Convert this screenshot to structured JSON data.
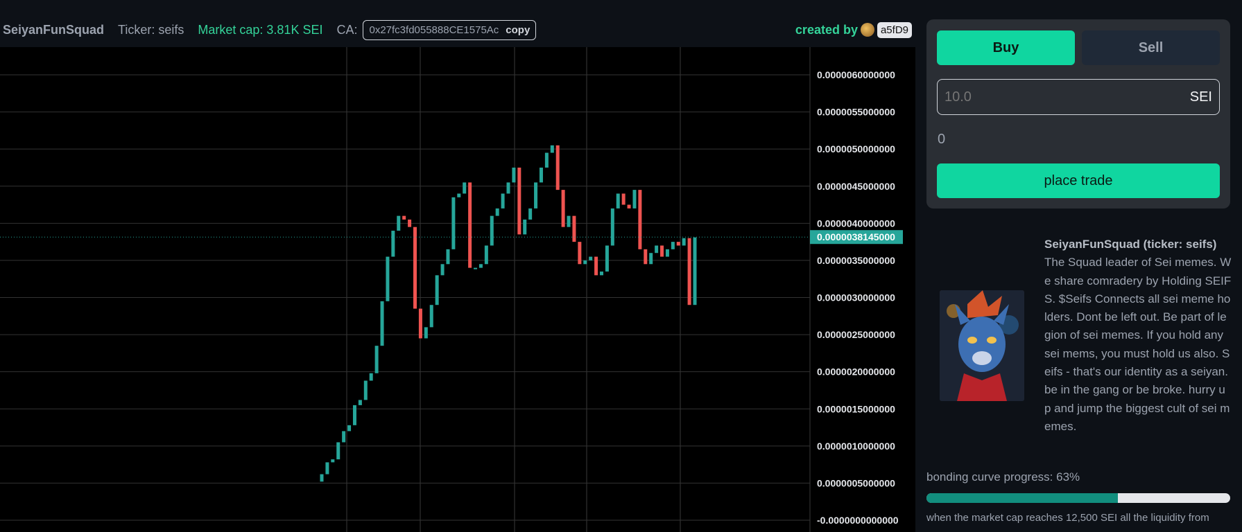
{
  "header": {
    "name": "SeiyanFunSquad",
    "ticker": "Ticker: seifs",
    "market_cap": "Market cap: 3.81K SEI",
    "ca_label": "CA:",
    "ca_value": "0x27fc3fd055888CE1575Ac",
    "copy_label": "copy",
    "created_by": "created by",
    "creator": "a5fD9"
  },
  "trade": {
    "buy_label": "Buy",
    "sell_label": "Sell",
    "amount_placeholder": "10.0",
    "amount_unit": "SEI",
    "receive_value": "0",
    "place_label": "place trade"
  },
  "info": {
    "title": "SeiyanFunSquad (ticker: seifs)",
    "description": "The Squad leader of Sei memes. We share comradery by Holding SEIFS. $Seifs Connects all sei meme holders. Dont be left out. Be part of legion of sei memes. If you hold any sei mems, you must hold us also. Seifs - that's our identity as a seiyan. be in the gang or be broke. hurry up and jump the biggest cult of sei memes."
  },
  "progress": {
    "label": "bonding curve progress: 63%",
    "value": 0.63,
    "note": "when the market cap reaches 12,500 SEI all the liquidity from"
  },
  "colors": {
    "up": "#26a69a",
    "down": "#ef5350",
    "accent": "#10d6a0"
  },
  "chart_data": {
    "type": "candlestick",
    "last_price_label": "0.0000038145000",
    "last_price": 3.8145e-06,
    "ylim": [
      0,
      6.5e-06
    ],
    "y_ticks": [
      "0.0000060000000",
      "0.0000055000000",
      "0.0000050000000",
      "0.0000045000000",
      "0.0000040000000",
      "0.0000035000000",
      "0.0000030000000",
      "0.0000025000000",
      "0.0000020000000",
      "0.0000015000000",
      "0.0000010000000",
      "0.0000005000000",
      "-0.0000000000000"
    ],
    "y_tick_values": [
      6e-06,
      5.5e-06,
      5e-06,
      4.5e-06,
      4e-06,
      3.5e-06,
      3e-06,
      2.5e-06,
      2e-06,
      1.5e-06,
      1e-06,
      5e-07,
      0
    ],
    "candles": [
      [
        0.52,
        0.62
      ],
      [
        0.62,
        0.78
      ],
      [
        0.78,
        0.82
      ],
      [
        0.82,
        1.05
      ],
      [
        1.05,
        1.2
      ],
      [
        1.2,
        1.28
      ],
      [
        1.28,
        1.55
      ],
      [
        1.55,
        1.62
      ],
      [
        1.62,
        1.88
      ],
      [
        1.88,
        1.98
      ],
      [
        1.98,
        2.35
      ],
      [
        2.35,
        2.95
      ],
      [
        2.95,
        3.55
      ],
      [
        3.55,
        3.9
      ],
      [
        3.9,
        4.1
      ],
      [
        4.1,
        4.05
      ],
      [
        4.05,
        3.95
      ],
      [
        3.95,
        2.85
      ],
      [
        2.85,
        2.45
      ],
      [
        2.45,
        2.6
      ],
      [
        2.6,
        2.9
      ],
      [
        2.9,
        3.3
      ],
      [
        3.3,
        3.45
      ],
      [
        3.45,
        3.65
      ],
      [
        3.65,
        4.35
      ],
      [
        4.35,
        4.4
      ],
      [
        4.4,
        4.55
      ],
      [
        4.55,
        3.4
      ],
      [
        3.4,
        3.4
      ],
      [
        3.4,
        3.45
      ],
      [
        3.45,
        3.7
      ],
      [
        3.7,
        4.1
      ],
      [
        4.1,
        4.2
      ],
      [
        4.2,
        4.4
      ],
      [
        4.4,
        4.55
      ],
      [
        4.55,
        4.75
      ],
      [
        4.75,
        3.85
      ],
      [
        3.85,
        4.05
      ],
      [
        4.05,
        4.2
      ],
      [
        4.2,
        4.55
      ],
      [
        4.55,
        4.75
      ],
      [
        4.75,
        4.95
      ],
      [
        4.95,
        5.05
      ],
      [
        5.05,
        4.45
      ],
      [
        4.45,
        3.95
      ],
      [
        3.95,
        4.1
      ],
      [
        4.1,
        3.75
      ],
      [
        3.75,
        3.45
      ],
      [
        3.45,
        3.5
      ],
      [
        3.5,
        3.55
      ],
      [
        3.55,
        3.3
      ],
      [
        3.3,
        3.35
      ],
      [
        3.35,
        3.7
      ],
      [
        3.7,
        4.2
      ],
      [
        4.2,
        4.4
      ],
      [
        4.4,
        4.25
      ],
      [
        4.25,
        4.2
      ],
      [
        4.2,
        4.45
      ],
      [
        4.45,
        3.65
      ],
      [
        3.65,
        3.45
      ],
      [
        3.45,
        3.6
      ],
      [
        3.6,
        3.7
      ],
      [
        3.7,
        3.55
      ],
      [
        3.55,
        3.65
      ],
      [
        3.65,
        3.75
      ],
      [
        3.75,
        3.7
      ],
      [
        3.7,
        3.8
      ],
      [
        3.8,
        2.9
      ],
      [
        2.9,
        3.81
      ]
    ]
  }
}
